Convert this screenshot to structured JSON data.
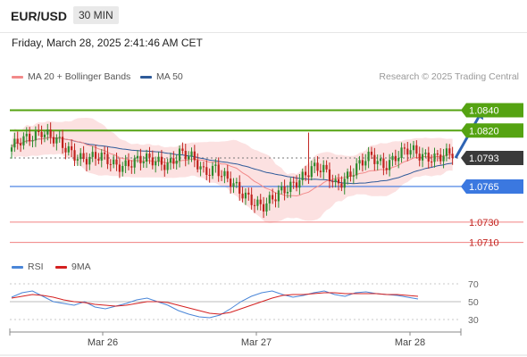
{
  "header": {
    "symbol": "EUR/USD",
    "timeframe": "30 MIN"
  },
  "datetime": "Friday, March 28, 2025 2:41:46 AM CET",
  "legend": {
    "ma20": "MA 20 + Bollinger Bands",
    "ma50": "MA 50",
    "rsi": "RSI",
    "rsi_ma": "9MA",
    "credit": "Research © 2025 Trading Central"
  },
  "colors": {
    "ma20": "#f28a8a",
    "band": "#fbdcdc",
    "ma50": "#2e5a99",
    "up": "#2e8b2e",
    "down": "#c0221d",
    "resistance": "#55a312",
    "support": "#3b78e0",
    "target": "#f08080",
    "price": "#3a3a3a",
    "arrow": "#2e64b4"
  },
  "chart_data": [
    {
      "type": "candlestick",
      "title": "",
      "ylim": [
        1.07,
        1.0865
      ],
      "x_ticks": [
        "Mar 26",
        "Mar 27",
        "Mar 28"
      ],
      "levels": [
        {
          "value": 1.084,
          "label": "1.0840",
          "kind": "resistance"
        },
        {
          "value": 1.082,
          "label": "1.0820",
          "kind": "resistance"
        },
        {
          "value": 1.0793,
          "label": "1.0793",
          "kind": "price"
        },
        {
          "value": 1.0765,
          "label": "1.0765",
          "kind": "support"
        },
        {
          "value": 1.073,
          "label": "1.0730",
          "kind": "target"
        },
        {
          "value": 1.071,
          "label": "1.0710",
          "kind": "target"
        }
      ],
      "close_path": [
        [
          0,
          1.08
        ],
        [
          6,
          1.0815
        ],
        [
          10,
          1.0822
        ],
        [
          14,
          1.081
        ],
        [
          18,
          1.08
        ],
        [
          22,
          1.0797
        ],
        [
          28,
          1.0793
        ],
        [
          34,
          1.0786
        ],
        [
          40,
          1.0791
        ],
        [
          46,
          1.0788
        ],
        [
          52,
          1.079
        ],
        [
          56,
          1.0798
        ],
        [
          60,
          1.079
        ],
        [
          64,
          1.078
        ],
        [
          68,
          1.0787
        ],
        [
          72,
          1.077
        ],
        [
          76,
          1.0757
        ],
        [
          80,
          1.0754
        ],
        [
          84,
          1.0748
        ],
        [
          88,
          1.0752
        ],
        [
          92,
          1.0762
        ],
        [
          96,
          1.0776
        ],
        [
          100,
          1.0783
        ],
        [
          104,
          1.0778
        ],
        [
          108,
          1.0768
        ],
        [
          112,
          1.0778
        ],
        [
          116,
          1.0785
        ],
        [
          120,
          1.0792
        ],
        [
          124,
          1.0788
        ],
        [
          128,
          1.0796
        ],
        [
          132,
          1.0798
        ],
        [
          136,
          1.0795
        ],
        [
          140,
          1.0797
        ],
        [
          144,
          1.0796
        ],
        [
          147,
          1.0793
        ]
      ],
      "wick_highs": [
        [
          99,
          1.0818
        ]
      ],
      "forecast_arrow": {
        "from": [
          148,
          1.0793
        ],
        "to": [
          157,
          1.084
        ]
      }
    },
    {
      "type": "line",
      "title": "",
      "ylim": [
        20,
        80
      ],
      "y_ticks": [
        70,
        50,
        30
      ],
      "series": [
        {
          "name": "RSI",
          "values": [
            55,
            60,
            62,
            56,
            50,
            48,
            46,
            50,
            44,
            42,
            45,
            48,
            52,
            54,
            50,
            46,
            40,
            36,
            33,
            32,
            35,
            42,
            50,
            56,
            60,
            62,
            58,
            55,
            57,
            60,
            62,
            58,
            56,
            60,
            61,
            59,
            58,
            57,
            55,
            53
          ]
        },
        {
          "name": "9MA",
          "values": [
            54,
            56,
            58,
            57,
            55,
            52,
            50,
            49,
            47,
            46,
            45,
            46,
            48,
            50,
            50,
            49,
            46,
            43,
            40,
            37,
            36,
            38,
            42,
            46,
            50,
            54,
            57,
            58,
            58,
            59,
            60,
            60,
            59,
            59,
            59,
            59,
            58,
            58,
            57,
            56
          ]
        }
      ]
    }
  ]
}
